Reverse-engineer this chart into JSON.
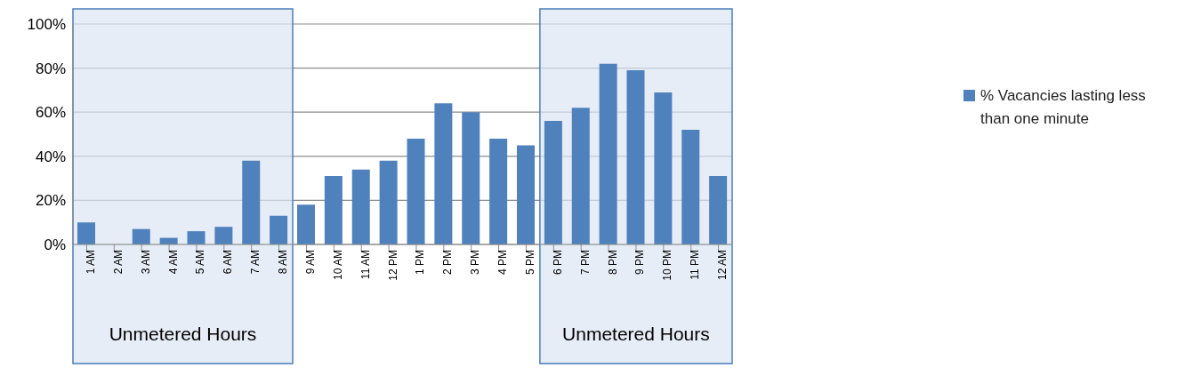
{
  "chart_data": {
    "type": "bar",
    "categories": [
      "1 AM",
      "2 AM",
      "3 AM",
      "4 AM",
      "5 AM",
      "6 AM",
      "7 AM",
      "8 AM",
      "9 AM",
      "10 AM",
      "11 AM",
      "12 PM",
      "1 PM",
      "2 PM",
      "3 PM",
      "4 PM",
      "5 PM",
      "6 PM",
      "7 PM",
      "8 PM",
      "9 PM",
      "10 PM",
      "11 PM",
      "12 AM"
    ],
    "series": [
      {
        "name": "% Vacancies lasting less than one minute",
        "color": "#4f81bd",
        "values": [
          10,
          0,
          7,
          3,
          6,
          8,
          38,
          13,
          18,
          31,
          34,
          38,
          48,
          64,
          60,
          48,
          45,
          56,
          62,
          82,
          79,
          69,
          52,
          31
        ]
      }
    ],
    "ylim": [
      0,
      100
    ],
    "yticks": [
      {
        "value": 0,
        "label": "0%"
      },
      {
        "value": 20,
        "label": "20%"
      },
      {
        "value": 40,
        "label": "40%"
      },
      {
        "value": 60,
        "label": "60%"
      },
      {
        "value": 80,
        "label": "80%"
      },
      {
        "value": 100,
        "label": "100%"
      }
    ],
    "grid": "y",
    "legend": "right",
    "bands": [
      {
        "axis": "x",
        "from": "1 AM",
        "to": "8 AM",
        "label": "Unmetered Hours",
        "color": "#dce6f2"
      },
      {
        "axis": "x",
        "from": "6 PM",
        "to": "12 AM",
        "label": "Unmetered Hours",
        "color": "#dce6f2"
      }
    ]
  }
}
